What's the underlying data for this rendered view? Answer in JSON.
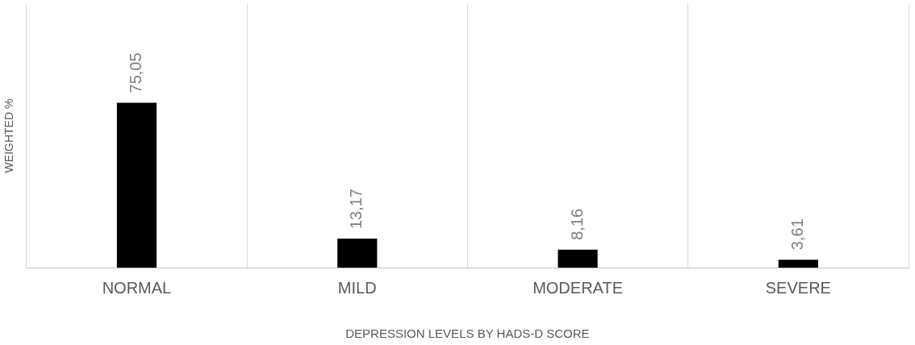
{
  "chart_data": {
    "type": "bar",
    "xlabel": "DEPRESSION LEVELS BY HADS-D SCORE",
    "ylabel": "WEIGHTED %",
    "categories": [
      "NORMAL",
      "MILD",
      "MODERATE",
      "SEVERE"
    ],
    "series": [
      {
        "color": "#000000",
        "values": [
          75.05,
          13.17,
          8.16,
          3.61
        ],
        "value_labels": [
          "75,05",
          "13,17",
          "8,16",
          "3,61"
        ]
      }
    ],
    "grid": "x",
    "legend": false
  }
}
